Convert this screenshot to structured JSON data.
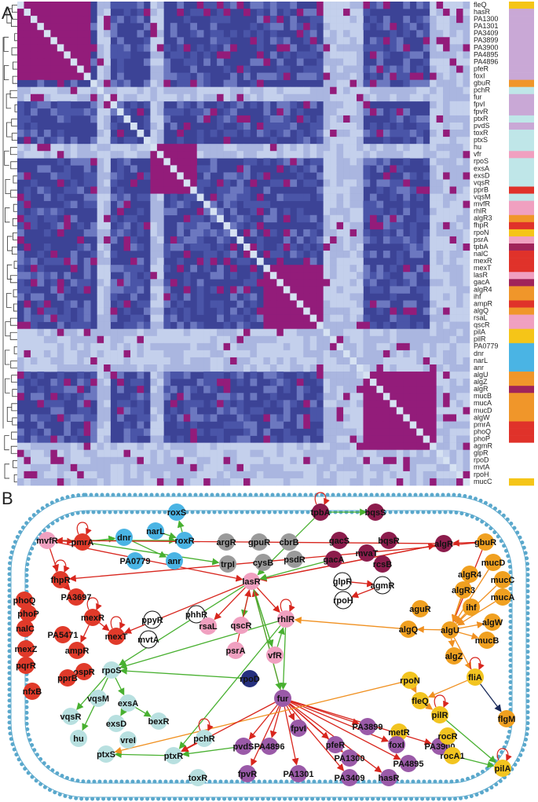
{
  "panels": [
    {
      "label": "A",
      "heatmap_rows": [
        {
          "label": "fleQ",
          "color": "#f5c518"
        },
        {
          "label": "hasR",
          "color": "#c9a8d6"
        },
        {
          "label": "PA1300",
          "color": "#c9a8d6"
        },
        {
          "label": "PA1301",
          "color": "#c9a8d6"
        },
        {
          "label": "PA3409",
          "color": "#c9a8d6"
        },
        {
          "label": "PA3899",
          "color": "#c9a8d6"
        },
        {
          "label": "PA3900",
          "color": "#c9a8d6"
        },
        {
          "label": "PA4895",
          "color": "#c9a8d6"
        },
        {
          "label": "PA4896",
          "color": "#c9a8d6"
        },
        {
          "label": "pfeR",
          "color": "#c9a8d6"
        },
        {
          "label": "foxI",
          "color": "#c9a8d6"
        },
        {
          "label": "gbuR",
          "color": "#f0962a"
        },
        {
          "label": "pchR",
          "color": "#bfe6e8"
        },
        {
          "label": "fur",
          "color": "#c9a8d6"
        },
        {
          "label": "fpvI",
          "color": "#c9a8d6"
        },
        {
          "label": "fpvR",
          "color": "#c9a8d6"
        },
        {
          "label": "ptxR",
          "color": "#bfe6e8"
        },
        {
          "label": "pvdS",
          "color": "#c9a8d6"
        },
        {
          "label": "toxR",
          "color": "#bfe6e8"
        },
        {
          "label": "ptxS",
          "color": "#bfe6e8"
        },
        {
          "label": "hu",
          "color": "#bfe6e8"
        },
        {
          "label": "vfr",
          "color": "#f0a0c0"
        },
        {
          "label": "rpoS",
          "color": "#bfe6e8"
        },
        {
          "label": "exsA",
          "color": "#bfe6e8"
        },
        {
          "label": "exsD",
          "color": "#bfe6e8"
        },
        {
          "label": "vqsR",
          "color": "#bfe6e8"
        },
        {
          "label": "pprB",
          "color": "#e0322a"
        },
        {
          "label": "vqsM",
          "color": "#bfe6e8"
        },
        {
          "label": "mvfR",
          "color": "#f0a0c0"
        },
        {
          "label": "rhlR",
          "color": "#f0a0c0"
        },
        {
          "label": "algR3",
          "color": "#f0962a"
        },
        {
          "label": "fhpR",
          "color": "#e0322a"
        },
        {
          "label": "rpoN",
          "color": "#f5c518"
        },
        {
          "label": "psrA",
          "color": "#f0a0c0"
        },
        {
          "label": "tpbA",
          "color": "#a0245a"
        },
        {
          "label": "nalC",
          "color": "#e0322a"
        },
        {
          "label": "mexR",
          "color": "#e0322a"
        },
        {
          "label": "mexT",
          "color": "#e0322a"
        },
        {
          "label": "lasR",
          "color": "#f0a0c0"
        },
        {
          "label": "gacA",
          "color": "#a0245a"
        },
        {
          "label": "algR4",
          "color": "#f0962a"
        },
        {
          "label": "ihf",
          "color": "#f0962a"
        },
        {
          "label": "ampR",
          "color": "#e0322a"
        },
        {
          "label": "algQ",
          "color": "#f0962a"
        },
        {
          "label": "rsaL",
          "color": "#f0a0c0"
        },
        {
          "label": "qscR",
          "color": "#f0a0c0"
        },
        {
          "label": "pilA",
          "color": "#f5c518"
        },
        {
          "label": "pilR",
          "color": "#f5c518"
        },
        {
          "label": "PA0779",
          "color": "#4ab4e4"
        },
        {
          "label": "dnr",
          "color": "#4ab4e4"
        },
        {
          "label": "narL",
          "color": "#4ab4e4"
        },
        {
          "label": "anr",
          "color": "#4ab4e4"
        },
        {
          "label": "algU",
          "color": "#f0962a"
        },
        {
          "label": "algZ",
          "color": "#f0962a"
        },
        {
          "label": "algR",
          "color": "#a0245a"
        },
        {
          "label": "mucB",
          "color": "#f0962a"
        },
        {
          "label": "mucA",
          "color": "#f0962a"
        },
        {
          "label": "mucD",
          "color": "#f0962a"
        },
        {
          "label": "algW",
          "color": "#f0962a"
        },
        {
          "label": "pmrA",
          "color": "#e0322a"
        },
        {
          "label": "phoQ",
          "color": "#e0322a"
        },
        {
          "label": "phoP",
          "color": "#e0322a"
        },
        {
          "label": "agmR",
          "color": "#ffffff"
        },
        {
          "label": "glpR",
          "color": "#ffffff"
        },
        {
          "label": "rpoD",
          "color": "#ffffff"
        },
        {
          "label": "mvtA",
          "color": "#ffffff"
        },
        {
          "label": "rpoH",
          "color": "#ffffff"
        },
        {
          "label": "mucC",
          "color": "#f5c518"
        }
      ]
    },
    {
      "label": "B",
      "nodes": [
        {
          "label": "roxS",
          "color": "#4ab4e4"
        },
        {
          "label": "tpbA",
          "color": "#8c1c4c"
        },
        {
          "label": "bqsS",
          "color": "#8c1c4c"
        },
        {
          "label": "dnr",
          "color": "#4ab4e4"
        },
        {
          "label": "narL",
          "color": "#4ab4e4"
        },
        {
          "label": "roxR",
          "color": "#4ab4e4"
        },
        {
          "label": "argR",
          "color": "#9a9a9a"
        },
        {
          "label": "gpuR",
          "color": "#9a9a9a"
        },
        {
          "label": "cbrB",
          "color": "#9a9a9a"
        },
        {
          "label": "gacS",
          "color": "#8c1c4c"
        },
        {
          "label": "bqsR",
          "color": "#8c1c4c"
        },
        {
          "label": "mvaT",
          "color": "#8c1c4c"
        },
        {
          "label": "gacA",
          "color": "#8c1c4c"
        },
        {
          "label": "rcsB",
          "color": "#8c1c4c"
        },
        {
          "label": "algR",
          "color": "#8c1c4c"
        },
        {
          "label": "gbuR",
          "color": "#f0a020"
        },
        {
          "label": "mucD",
          "color": "#f0a020"
        },
        {
          "label": "pmrA",
          "color": "#e03a2a"
        },
        {
          "label": "mvfR",
          "color": "#f0a0c0"
        },
        {
          "label": "PA0779",
          "color": "#4ab4e4"
        },
        {
          "label": "anr",
          "color": "#4ab4e4"
        },
        {
          "label": "trpI",
          "color": "#9a9a9a"
        },
        {
          "label": "cysB",
          "color": "#9a9a9a"
        },
        {
          "label": "psdR",
          "color": "#9a9a9a"
        },
        {
          "label": "algR4",
          "color": "#f0a020"
        },
        {
          "label": "mucC",
          "color": "#f0a020"
        },
        {
          "label": "algR3",
          "color": "#f0a020"
        },
        {
          "label": "mucA",
          "color": "#f0a020"
        },
        {
          "label": "ihf",
          "color": "#f0a020"
        },
        {
          "label": "fhpR",
          "color": "#e03a2a"
        },
        {
          "label": "phoQ",
          "color": "#e03a2a"
        },
        {
          "label": "PA3697",
          "color": "#e03a2a"
        },
        {
          "label": "lasR",
          "color": "#f0a0c0"
        },
        {
          "label": "glpR",
          "color": "#ffffff"
        },
        {
          "label": "agmR",
          "color": "#ffffff"
        },
        {
          "label": "phoP",
          "color": "#e03a2a"
        },
        {
          "label": "mexR",
          "color": "#e03a2a"
        },
        {
          "label": "ppyR",
          "color": "#ffffff"
        },
        {
          "label": "phhR",
          "color": "#ffffff"
        },
        {
          "label": "rsaL",
          "color": "#f0a0c0"
        },
        {
          "label": "qscR",
          "color": "#f0a0c0"
        },
        {
          "label": "rhlR",
          "color": "#f0a0c0"
        },
        {
          "label": "rpoH",
          "color": "#ffffff"
        },
        {
          "label": "aguR",
          "color": "#f0a020"
        },
        {
          "label": "algW",
          "color": "#f0a020"
        },
        {
          "label": "nalC",
          "color": "#e03a2a"
        },
        {
          "label": "PA5471",
          "color": "#e03a2a"
        },
        {
          "label": "mexT",
          "color": "#e03a2a"
        },
        {
          "label": "mvtA",
          "color": "#ffffff"
        },
        {
          "label": "algQ",
          "color": "#f0a020"
        },
        {
          "label": "algU",
          "color": "#f0a020"
        },
        {
          "label": "mucB",
          "color": "#f0a020"
        },
        {
          "label": "mexZ",
          "color": "#e03a2a"
        },
        {
          "label": "ampR",
          "color": "#e03a2a"
        },
        {
          "label": "psrA",
          "color": "#f0a0c0"
        },
        {
          "label": "vfR",
          "color": "#f0a0c0"
        },
        {
          "label": "algZ",
          "color": "#f0a020"
        },
        {
          "label": "pqrR",
          "color": "#e03a2a"
        },
        {
          "label": "ospR",
          "color": "#e03a2a"
        },
        {
          "label": "rpoS",
          "color": "#b8e0e0"
        },
        {
          "label": "rpoD",
          "color": "#26307e"
        },
        {
          "label": "rpoN",
          "color": "#f2c420"
        },
        {
          "label": "fliA",
          "color": "#f2c420"
        },
        {
          "label": "pprB",
          "color": "#e03a2a"
        },
        {
          "label": "nfxB",
          "color": "#e03a2a"
        },
        {
          "label": "vqsM",
          "color": "#b8e0e0"
        },
        {
          "label": "exsA",
          "color": "#b8e0e0"
        },
        {
          "label": "fur",
          "color": "#9a5aa8"
        },
        {
          "label": "fleQ",
          "color": "#f2c420"
        },
        {
          "label": "vqsR",
          "color": "#b8e0e0"
        },
        {
          "label": "exsD",
          "color": "#b8e0e0"
        },
        {
          "label": "bexR",
          "color": "#b8e0e0"
        },
        {
          "label": "pilR",
          "color": "#f2c420"
        },
        {
          "label": "flgM",
          "color": "#f0a020"
        },
        {
          "label": "metR",
          "color": "#f2c420"
        },
        {
          "label": "fpvI",
          "color": "#9a5aa8"
        },
        {
          "label": "PA3899",
          "color": "#9a5aa8"
        },
        {
          "label": "hu",
          "color": "#b8e0e0"
        },
        {
          "label": "vreI",
          "color": "#b8e0e0"
        },
        {
          "label": "pchR",
          "color": "#b8e0e0"
        },
        {
          "label": "pfeR",
          "color": "#9a5aa8"
        },
        {
          "label": "foxI",
          "color": "#9a5aa8"
        },
        {
          "label": "PA3900",
          "color": "#9a5aa8"
        },
        {
          "label": "rocR",
          "color": "#f2c420"
        },
        {
          "label": "ptxS",
          "color": "#b8e0e0"
        },
        {
          "label": "ptxR",
          "color": "#b8e0e0"
        },
        {
          "label": "pvdS",
          "color": "#9a5aa8"
        },
        {
          "label": "PA4896",
          "color": "#9a5aa8"
        },
        {
          "label": "PA1300",
          "color": "#9a5aa8"
        },
        {
          "label": "rocA1",
          "color": "#f2c420"
        },
        {
          "label": "pilA",
          "color": "#f2c420"
        },
        {
          "label": "toxR",
          "color": "#b8e0e0"
        },
        {
          "label": "fpvR",
          "color": "#9a5aa8"
        },
        {
          "label": "PA1301",
          "color": "#9a5aa8"
        },
        {
          "label": "PA3409",
          "color": "#9a5aa8"
        },
        {
          "label": "hasR",
          "color": "#9a5aa8"
        },
        {
          "label": "PA4895",
          "color": "#9a5aa8"
        }
      ]
    }
  ]
}
